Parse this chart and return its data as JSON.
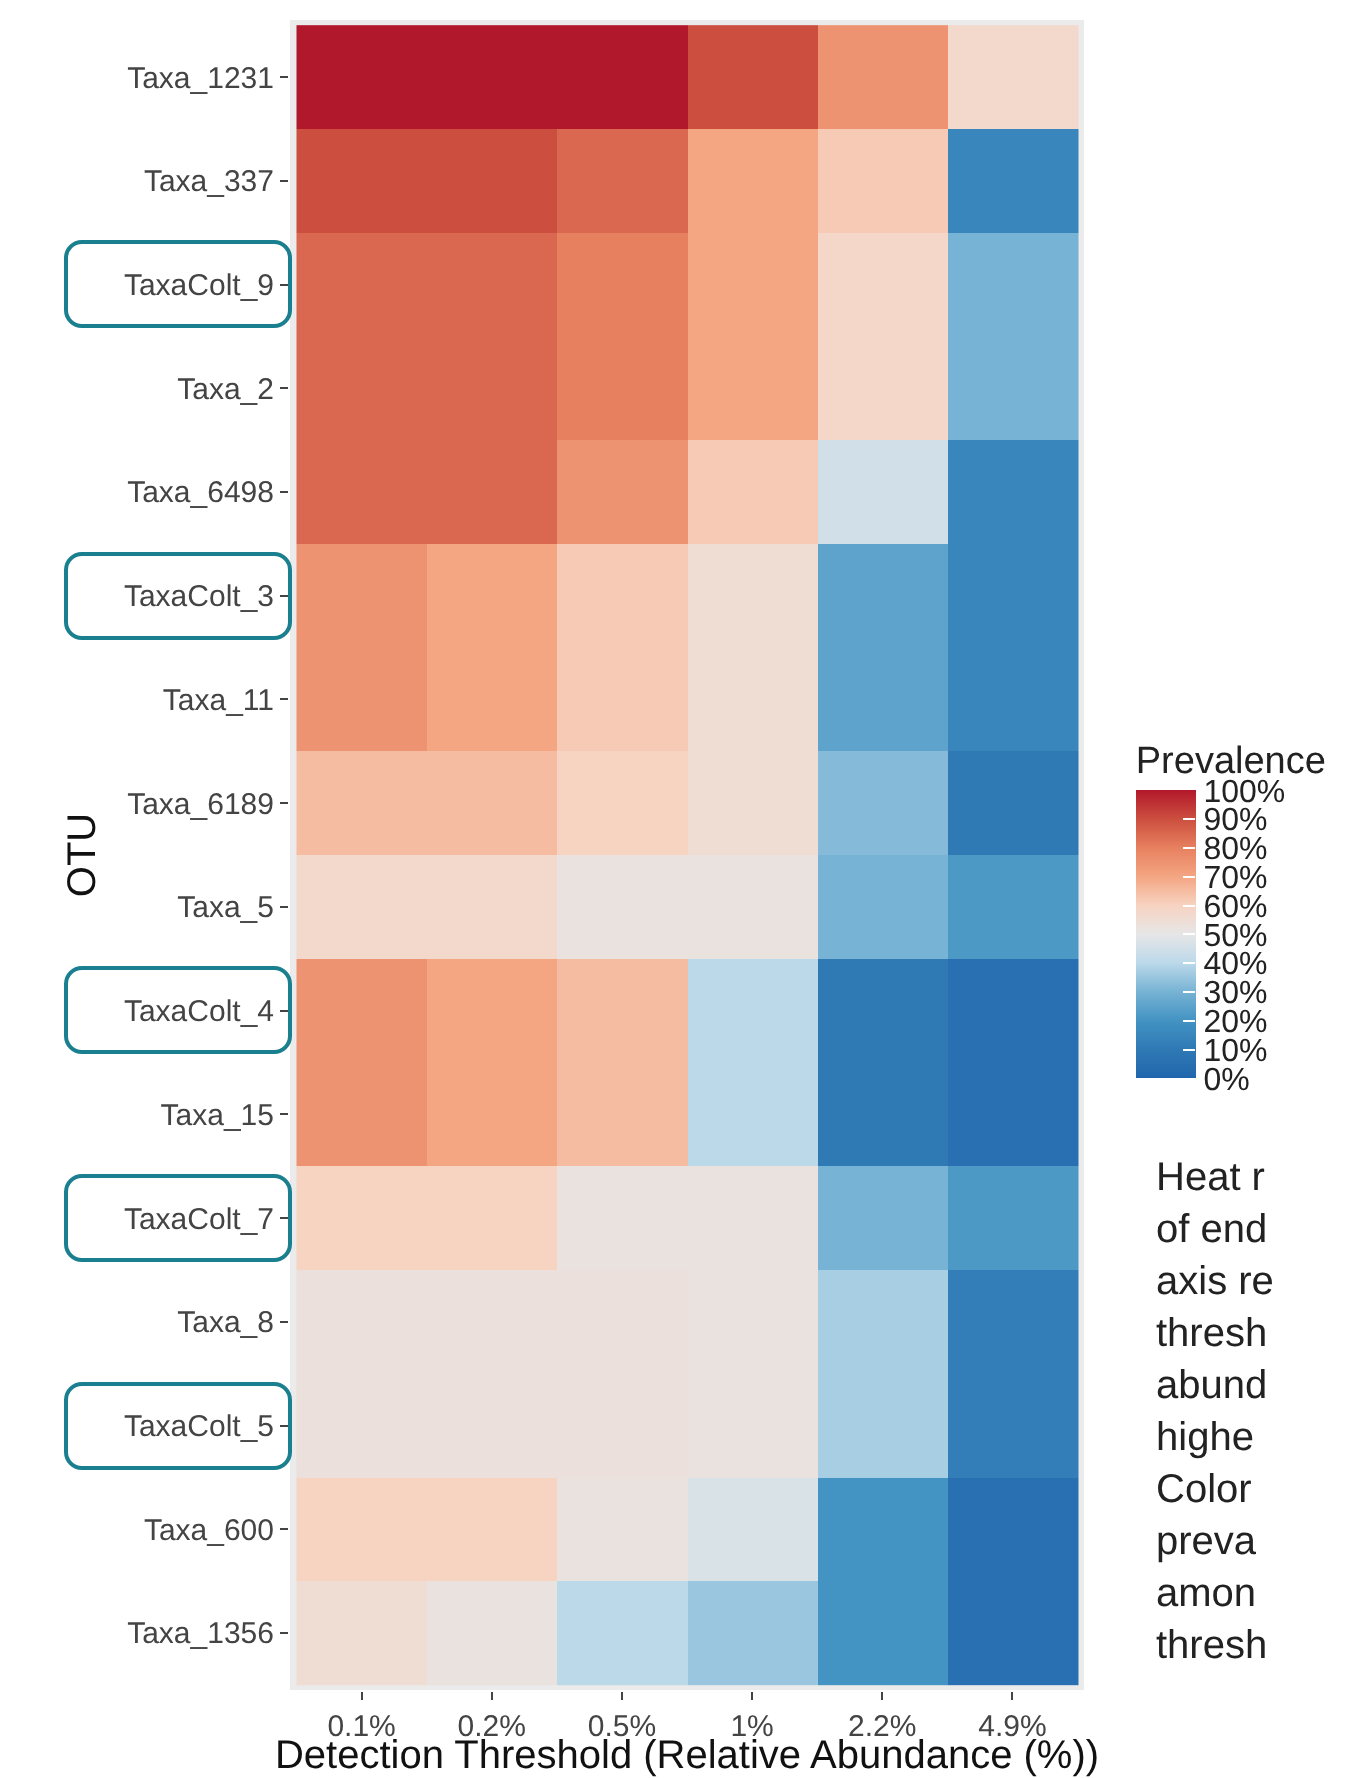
{
  "chart_data": {
    "type": "heatmap",
    "xlabel": "Detection Threshold (Relative Abundance (%))",
    "ylabel": "OTU",
    "clabel": "Prevalence",
    "categories": [
      "0.1%",
      "0.2%",
      "0.5%",
      "1%",
      "2.2%",
      "4.9%"
    ],
    "y_categories": [
      "Taxa_1231",
      "Taxa_337",
      "TaxaColt_9",
      "Taxa_2",
      "Taxa_6498",
      "TaxaColt_3",
      "Taxa_11",
      "Taxa_6189",
      "Taxa_5",
      "TaxaColt_4",
      "Taxa_15",
      "TaxaColt_7",
      "Taxa_8",
      "TaxaColt_5",
      "Taxa_600",
      "Taxa_1356"
    ],
    "cells": [
      [
        100,
        100,
        100,
        90,
        75,
        57
      ],
      [
        90,
        90,
        85,
        70,
        62,
        15
      ],
      [
        85,
        85,
        80,
        70,
        58,
        30
      ],
      [
        85,
        85,
        80,
        70,
        58,
        30
      ],
      [
        85,
        85,
        75,
        62,
        45,
        15
      ],
      [
        75,
        70,
        62,
        55,
        25,
        15
      ],
      [
        75,
        70,
        62,
        55,
        25,
        15
      ],
      [
        65,
        65,
        60,
        55,
        32,
        10
      ],
      [
        57,
        57,
        52,
        52,
        30,
        22
      ],
      [
        75,
        70,
        65,
        40,
        10,
        5
      ],
      [
        75,
        70,
        65,
        40,
        10,
        5
      ],
      [
        60,
        60,
        52,
        52,
        30,
        22
      ],
      [
        53,
        53,
        53,
        52,
        37,
        12
      ],
      [
        53,
        53,
        53,
        52,
        37,
        12
      ],
      [
        60,
        60,
        52,
        47,
        20,
        5
      ],
      [
        55,
        52,
        40,
        35,
        20,
        5
      ]
    ],
    "clim": [
      0,
      100
    ],
    "cticks": [
      {
        "value": 0,
        "label": "0%"
      },
      {
        "value": 10,
        "label": "10%"
      },
      {
        "value": 20,
        "label": "20%"
      },
      {
        "value": 30,
        "label": "30%"
      },
      {
        "value": 40,
        "label": "40%"
      },
      {
        "value": 50,
        "label": "50%"
      },
      {
        "value": 60,
        "label": "60%"
      },
      {
        "value": 70,
        "label": "70%"
      },
      {
        "value": 80,
        "label": "80%"
      },
      {
        "value": 90,
        "label": "90%"
      },
      {
        "value": 100,
        "label": "100%"
      }
    ],
    "annotations": [
      "Heat r\nof end\naxis re\nthresh\nabund\nhighe\nColor\npreva\namon\nthresh"
    ]
  }
}
